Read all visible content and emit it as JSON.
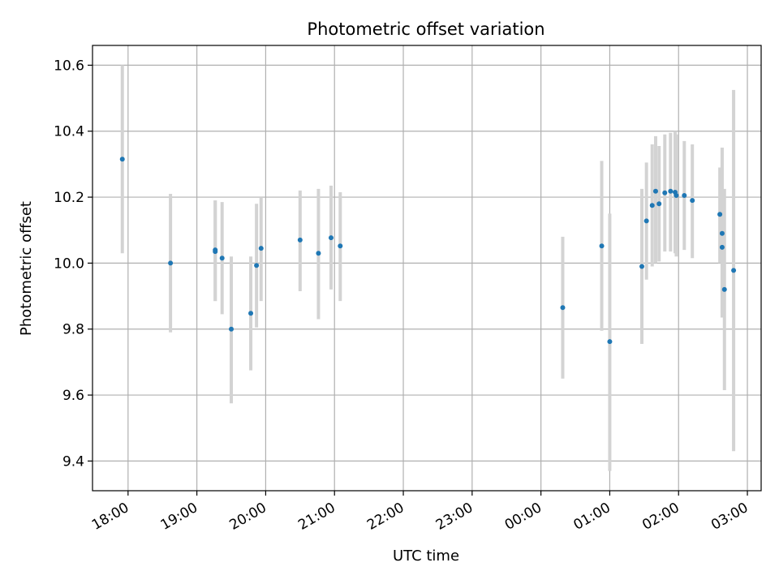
{
  "chart_data": {
    "type": "scatter",
    "title": "Photometric offset variation",
    "xlabel": "UTC time",
    "ylabel": "Photometric offset",
    "grid": true,
    "x_unit": "UTC hour of day (continues past midnight)",
    "xlim": [
      "17:29",
      "27:12"
    ],
    "ylim": [
      9.31,
      10.66
    ],
    "x_ticks": [
      "18:00",
      "19:00",
      "20:00",
      "21:00",
      "22:00",
      "23:00",
      "00:00",
      "01:00",
      "02:00",
      "03:00"
    ],
    "y_ticks": [
      "9.4",
      "9.6",
      "9.8",
      "10.0",
      "10.2",
      "10.4",
      "10.6"
    ],
    "series": [
      {
        "marker_color": "#1f77b4",
        "errorbar_color": "#d3d3d3",
        "points": [
          {
            "time": "17:55",
            "y": 10.315,
            "lo": 10.03,
            "hi": 10.6
          },
          {
            "time": "18:37",
            "y": 10.0,
            "lo": 9.79,
            "hi": 10.21
          },
          {
            "time": "19:16",
            "y": 10.04,
            "lo": 9.885,
            "hi": 10.19
          },
          {
            "time": "19:16",
            "y": 10.035,
            "lo": 9.885,
            "hi": 10.19
          },
          {
            "time": "19:22",
            "y": 10.015,
            "lo": 9.845,
            "hi": 10.185
          },
          {
            "time": "19:30",
            "y": 9.8,
            "lo": 9.575,
            "hi": 10.02
          },
          {
            "time": "19:47",
            "y": 9.848,
            "lo": 9.675,
            "hi": 10.02
          },
          {
            "time": "19:52",
            "y": 9.993,
            "lo": 9.805,
            "hi": 10.18
          },
          {
            "time": "19:56",
            "y": 10.045,
            "lo": 9.885,
            "hi": 10.2
          },
          {
            "time": "20:30",
            "y": 10.07,
            "lo": 9.915,
            "hi": 10.22
          },
          {
            "time": "20:46",
            "y": 10.03,
            "lo": 9.83,
            "hi": 10.225
          },
          {
            "time": "20:57",
            "y": 10.077,
            "lo": 9.92,
            "hi": 10.235
          },
          {
            "time": "21:05",
            "y": 10.052,
            "lo": 9.885,
            "hi": 10.215
          },
          {
            "time": "24:19",
            "y": 9.865,
            "lo": 9.65,
            "hi": 10.08
          },
          {
            "time": "24:53",
            "y": 10.052,
            "lo": 9.795,
            "hi": 10.31
          },
          {
            "time": "25:00",
            "y": 9.762,
            "lo": 9.37,
            "hi": 10.15
          },
          {
            "time": "25:28",
            "y": 9.99,
            "lo": 9.755,
            "hi": 10.225
          },
          {
            "time": "25:32",
            "y": 10.128,
            "lo": 9.95,
            "hi": 10.305
          },
          {
            "time": "25:37",
            "y": 10.175,
            "lo": 9.99,
            "hi": 10.36
          },
          {
            "time": "25:40",
            "y": 10.218,
            "lo": 10.0,
            "hi": 10.385
          },
          {
            "time": "25:43",
            "y": 10.18,
            "lo": 10.005,
            "hi": 10.355
          },
          {
            "time": "25:48",
            "y": 10.213,
            "lo": 10.035,
            "hi": 10.39
          },
          {
            "time": "25:53",
            "y": 10.218,
            "lo": 10.035,
            "hi": 10.395
          },
          {
            "time": "25:57",
            "y": 10.215,
            "lo": 10.03,
            "hi": 10.4
          },
          {
            "time": "25:58",
            "y": 10.205,
            "lo": 10.02,
            "hi": 10.39
          },
          {
            "time": "26:05",
            "y": 10.205,
            "lo": 10.04,
            "hi": 10.37
          },
          {
            "time": "26:12",
            "y": 10.19,
            "lo": 10.015,
            "hi": 10.36
          },
          {
            "time": "26:36",
            "y": 10.148,
            "lo": 10.0,
            "hi": 10.29
          },
          {
            "time": "26:38",
            "y": 10.048,
            "lo": 9.835,
            "hi": 10.35
          },
          {
            "time": "26:38",
            "y": 10.09,
            "lo": 9.85,
            "hi": 10.35
          },
          {
            "time": "26:40",
            "y": 9.92,
            "lo": 9.615,
            "hi": 10.225
          },
          {
            "time": "26:48",
            "y": 9.978,
            "lo": 9.43,
            "hi": 10.525
          }
        ]
      }
    ]
  }
}
